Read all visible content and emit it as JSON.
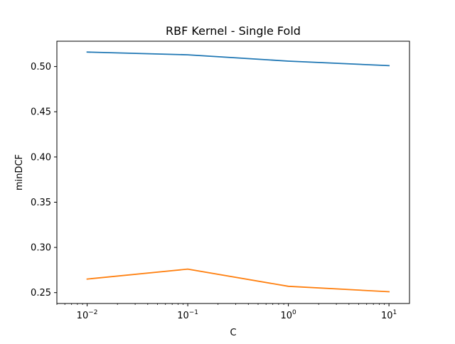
{
  "chart_data": {
    "type": "line",
    "title": "RBF Kernel - Single Fold",
    "xlabel": "C",
    "ylabel": "minDCF",
    "xscale": "log",
    "x": [
      0.01,
      0.1,
      1,
      10
    ],
    "xlim": [
      0.005,
      16
    ],
    "ylim": [
      0.238,
      0.528
    ],
    "xticks": [
      {
        "value": 0.01,
        "base": "10",
        "exp": "−2"
      },
      {
        "value": 0.1,
        "base": "10",
        "exp": "−1"
      },
      {
        "value": 1,
        "base": "10",
        "exp": "0"
      },
      {
        "value": 10,
        "base": "10",
        "exp": "1"
      }
    ],
    "yticks": [
      {
        "value": 0.25,
        "label": "0.25"
      },
      {
        "value": 0.3,
        "label": "0.30"
      },
      {
        "value": 0.35,
        "label": "0.35"
      },
      {
        "value": 0.4,
        "label": "0.40"
      },
      {
        "value": 0.45,
        "label": "0.45"
      },
      {
        "value": 0.5,
        "label": "0.50"
      }
    ],
    "grid": false,
    "series": [
      {
        "color": "#1f77b4",
        "values": [
          0.516,
          0.513,
          0.506,
          0.501
        ]
      },
      {
        "color": "#ff7f0e",
        "values": [
          0.265,
          0.276,
          0.257,
          0.251
        ]
      }
    ]
  }
}
